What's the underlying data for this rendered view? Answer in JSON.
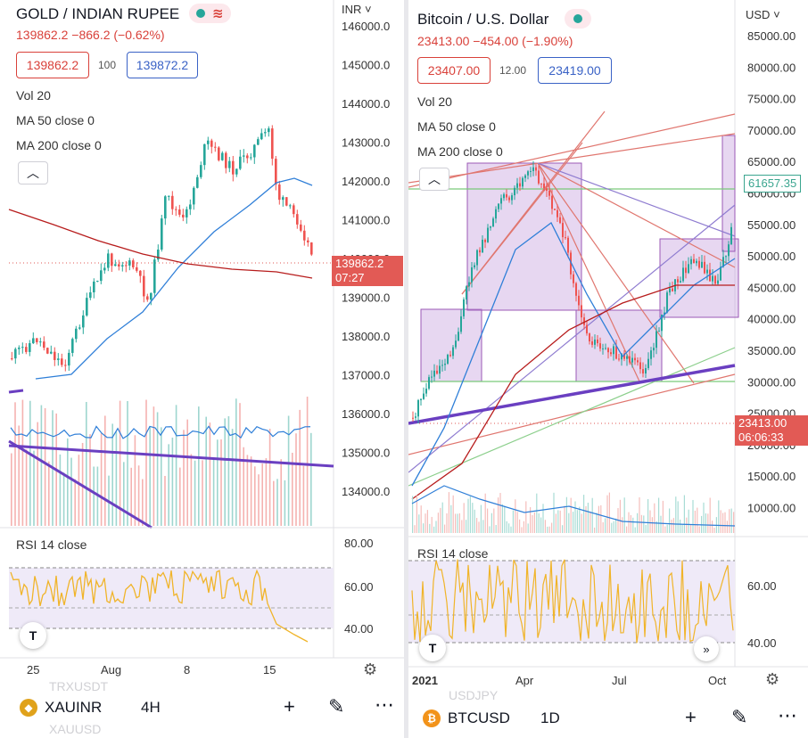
{
  "left": {
    "symbol": "GOLD / INDIAN RUPEE",
    "price_line": "139862.2 −866.2 (−0.62%)",
    "bid": "139862.2",
    "spread": "100",
    "ask": "139872.2",
    "indicators": [
      "Vol 20",
      "MA 50 close 0",
      "MA 200 close 0"
    ],
    "currency": "INR",
    "price_ticks": [
      "146000.0",
      "145000.0",
      "144000.0",
      "143000.0",
      "142000.0",
      "141000.0",
      "140000.0",
      "139000.0",
      "138000.0",
      "137000.0",
      "136000.0",
      "135000.0",
      "134000.0"
    ],
    "last_price_tag": "139862.2",
    "countdown_tag": "07:27",
    "rsi_label": "RSI 14 close",
    "rsi_ticks": [
      "80.00",
      "60.00",
      "40.00"
    ],
    "time_ticks": [
      "25",
      "Aug",
      "8",
      "15"
    ],
    "bottom": {
      "ghost_top": "TRXUSDT",
      "ghost_bottom": "XAUUSD",
      "symbol": "XAUINR",
      "timeframe": "4H"
    }
  },
  "right": {
    "symbol": "Bitcoin / U.S. Dollar",
    "price_line": "23413.00 −454.00 (−1.90%)",
    "bid": "23407.00",
    "spread": "12.00",
    "ask": "23419.00",
    "indicators": [
      "Vol 20",
      "MA 50 close 0",
      "MA 200 close 0"
    ],
    "currency": "USD",
    "price_ticks": [
      "85000.00",
      "80000.00",
      "75000.00",
      "70000.00",
      "65000.00",
      "60000.00",
      "55000.00",
      "50000.00",
      "45000.00",
      "40000.00",
      "35000.00",
      "30000.00",
      "25000.00",
      "20000.00",
      "15000.00",
      "10000.00"
    ],
    "green_level_tag": "61657.35",
    "last_price_tag": "23413.00",
    "countdown_tag": "06:06:33",
    "rsi_label": "RSI 14 close",
    "rsi_ticks": [
      "60.00",
      "40.00"
    ],
    "time_ticks": [
      "2021",
      "Apr",
      "Jul",
      "Oct"
    ],
    "bottom": {
      "ghost_top": "USDJPY",
      "symbol": "BTCUSD",
      "timeframe": "1D"
    }
  },
  "colors": {
    "up": "#26a69a",
    "down": "#ef5350",
    "ma50": "#2f7fd8",
    "ma200": "#b71c1c",
    "rsi": "#f0b429",
    "trend": "#6a3fc1",
    "zone": "#c9a6e0"
  },
  "icons": {
    "add": "plus-icon",
    "draw": "pen-icon",
    "more": "more-icon",
    "settings": "gear-icon",
    "collapse": "chevron-up-icon"
  }
}
